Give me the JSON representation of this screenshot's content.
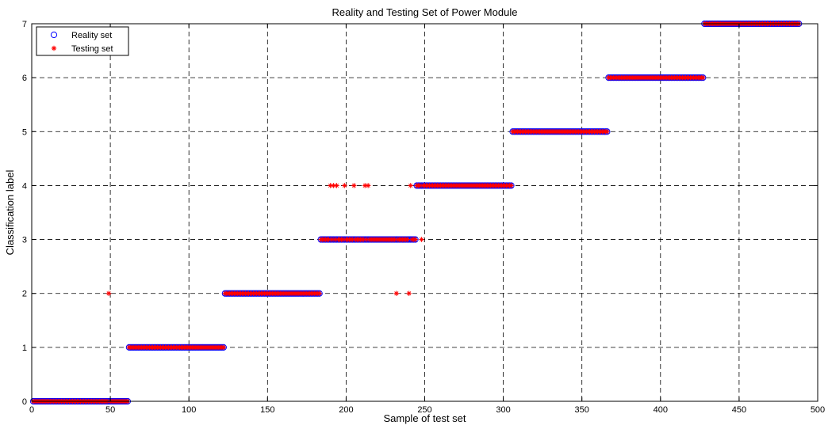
{
  "chart_data": {
    "type": "scatter",
    "title": "Reality and Testing Set of Power Module",
    "xlabel": "Sample of test set",
    "ylabel": "Classification label",
    "xlim": [
      0,
      500
    ],
    "ylim": [
      0,
      7
    ],
    "xticks": [
      0,
      50,
      100,
      150,
      200,
      250,
      300,
      350,
      400,
      450,
      500
    ],
    "yticks": [
      0,
      1,
      2,
      3,
      4,
      5,
      6,
      7
    ],
    "xtick_labels": [
      "0",
      "50",
      "100",
      "150",
      "200",
      "250",
      "300",
      "350",
      "400",
      "450",
      "500"
    ],
    "ytick_labels": [
      "0",
      "1",
      "2",
      "3",
      "4",
      "5",
      "6",
      "7"
    ],
    "grid": true,
    "grid_style": "dashed",
    "legend_position": "top-left",
    "reality_segments": [
      {
        "label": 0,
        "x_start": 1,
        "x_end": 61
      },
      {
        "label": 1,
        "x_start": 62,
        "x_end": 122
      },
      {
        "label": 2,
        "x_start": 123,
        "x_end": 183
      },
      {
        "label": 3,
        "x_start": 184,
        "x_end": 244
      },
      {
        "label": 4,
        "x_start": 245,
        "x_end": 305
      },
      {
        "label": 5,
        "x_start": 306,
        "x_end": 366
      },
      {
        "label": 6,
        "x_start": 367,
        "x_end": 427
      },
      {
        "label": 7,
        "x_start": 428,
        "x_end": 488
      }
    ],
    "testing_deviations": [
      {
        "x": 49,
        "y": 2
      },
      {
        "x": 190,
        "y": 4
      },
      {
        "x": 192,
        "y": 4
      },
      {
        "x": 194,
        "y": 4
      },
      {
        "x": 199,
        "y": 4
      },
      {
        "x": 205,
        "y": 4
      },
      {
        "x": 212,
        "y": 4
      },
      {
        "x": 214,
        "y": 4
      },
      {
        "x": 232,
        "y": 2
      },
      {
        "x": 240,
        "y": 2
      },
      {
        "x": 241,
        "y": 4
      },
      {
        "x": 248,
        "y": 3
      }
    ],
    "series": [
      {
        "name": "Reality set",
        "marker": "circle",
        "color": "#0000ff"
      },
      {
        "name": "Testing set",
        "marker": "asterisk",
        "color": "#ff0000"
      }
    ]
  }
}
